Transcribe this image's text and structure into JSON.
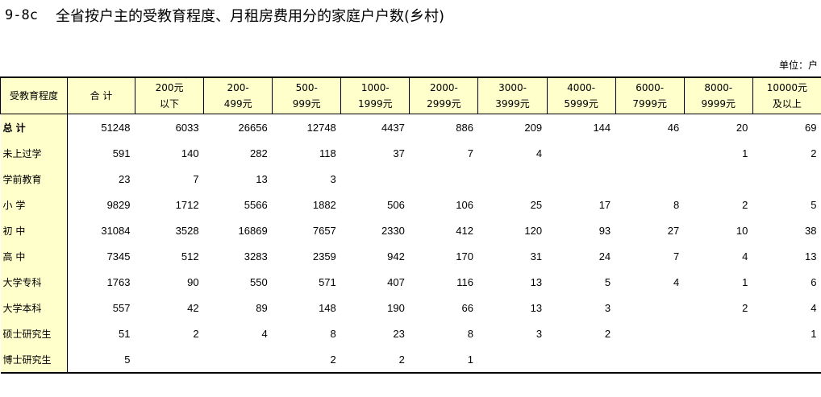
{
  "title": {
    "code": "9-8c",
    "text": "全省按户主的受教育程度、月租房费用分的家庭户户数(乡村)"
  },
  "unit": "单位：户",
  "columns": [
    {
      "l1": "受教育程度",
      "l2": ""
    },
    {
      "l1": "合  计",
      "l2": ""
    },
    {
      "l1": "200元",
      "l2": "以下"
    },
    {
      "l1": "200-",
      "l2": "499元"
    },
    {
      "l1": "500-",
      "l2": "999元"
    },
    {
      "l1": "1000-",
      "l2": "1999元"
    },
    {
      "l1": "2000-",
      "l2": "2999元"
    },
    {
      "l1": "3000-",
      "l2": "3999元"
    },
    {
      "l1": "4000-",
      "l2": "5999元"
    },
    {
      "l1": "6000-",
      "l2": "7999元"
    },
    {
      "l1": "8000-",
      "l2": "9999元"
    },
    {
      "l1": "10000元",
      "l2": "及以上"
    }
  ],
  "rows": [
    {
      "label": "总  计",
      "values": [
        "51248",
        "6033",
        "26656",
        "12748",
        "4437",
        "886",
        "209",
        "144",
        "46",
        "20",
        "69"
      ]
    },
    {
      "label": "未上过学",
      "values": [
        "591",
        "140",
        "282",
        "118",
        "37",
        "7",
        "4",
        "",
        "",
        "1",
        "2"
      ]
    },
    {
      "label": "学前教育",
      "values": [
        "23",
        "7",
        "13",
        "3",
        "",
        "",
        "",
        "",
        "",
        "",
        ""
      ]
    },
    {
      "label": "小  学",
      "values": [
        "9829",
        "1712",
        "5566",
        "1882",
        "506",
        "106",
        "25",
        "17",
        "8",
        "2",
        "5"
      ]
    },
    {
      "label": "初  中",
      "values": [
        "31084",
        "3528",
        "16869",
        "7657",
        "2330",
        "412",
        "120",
        "93",
        "27",
        "10",
        "38"
      ]
    },
    {
      "label": "高  中",
      "values": [
        "7345",
        "512",
        "3283",
        "2359",
        "942",
        "170",
        "31",
        "24",
        "7",
        "4",
        "13"
      ]
    },
    {
      "label": "大学专科",
      "values": [
        "1763",
        "90",
        "550",
        "571",
        "407",
        "116",
        "13",
        "5",
        "4",
        "1",
        "6"
      ]
    },
    {
      "label": "大学本科",
      "values": [
        "557",
        "42",
        "89",
        "148",
        "190",
        "66",
        "13",
        "3",
        "",
        "2",
        "4"
      ]
    },
    {
      "label": "硕士研究生",
      "values": [
        "51",
        "2",
        "4",
        "8",
        "23",
        "8",
        "3",
        "2",
        "",
        "",
        "1"
      ]
    },
    {
      "label": "博士研究生",
      "values": [
        "5",
        "",
        "",
        "2",
        "2",
        "1",
        "",
        "",
        "",
        "",
        ""
      ]
    }
  ]
}
